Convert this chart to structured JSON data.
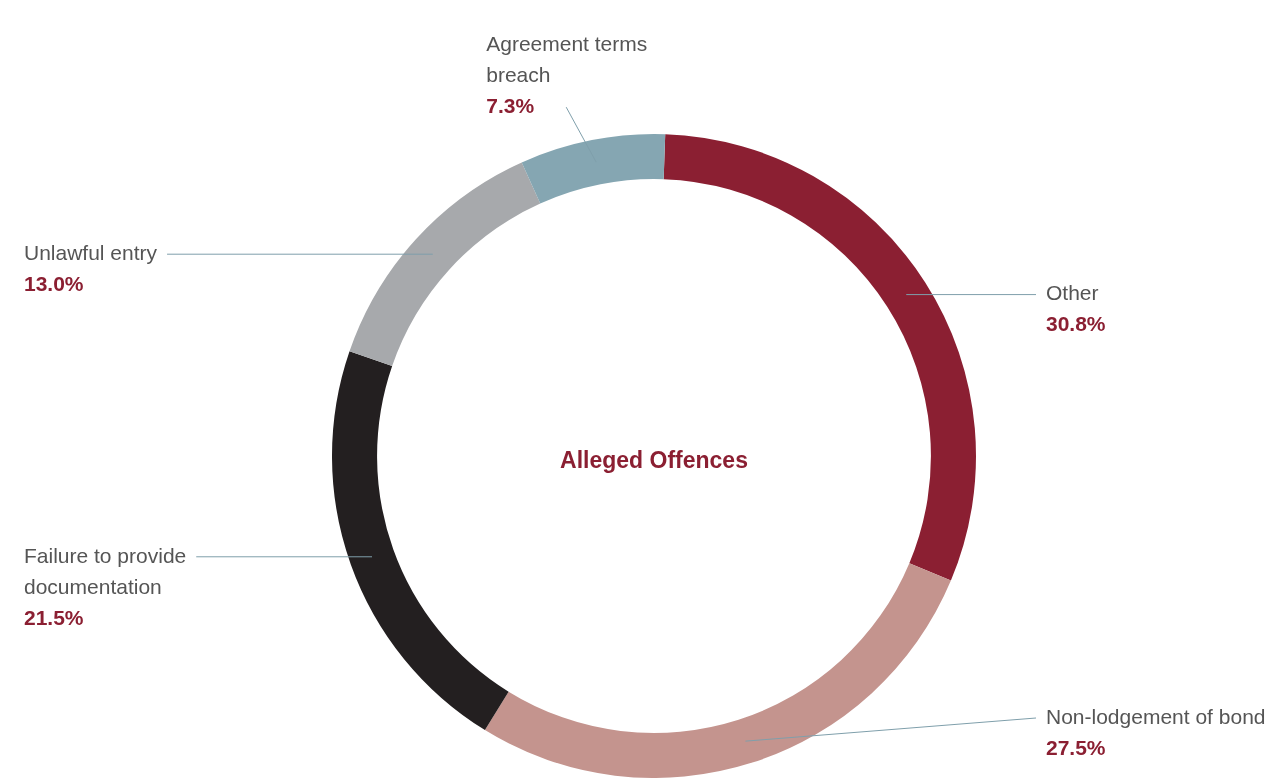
{
  "chart_data": {
    "type": "donut",
    "title": "Alleged Offences",
    "categories": [
      "Other",
      "Non-lodgement of bond",
      "Failure to provide documentation",
      "Unlawful entry",
      "Agreement terms breach"
    ],
    "values": [
      30.8,
      27.5,
      21.5,
      13.0,
      7.3
    ],
    "value_labels": [
      "30.8%",
      "27.5%",
      "21.5%",
      "13.0%",
      "7.3%"
    ],
    "colors": [
      "#8b1f32",
      "#c4948e",
      "#231f20",
      "#a7a9ac",
      "#85a6b2"
    ],
    "legend": false
  }
}
